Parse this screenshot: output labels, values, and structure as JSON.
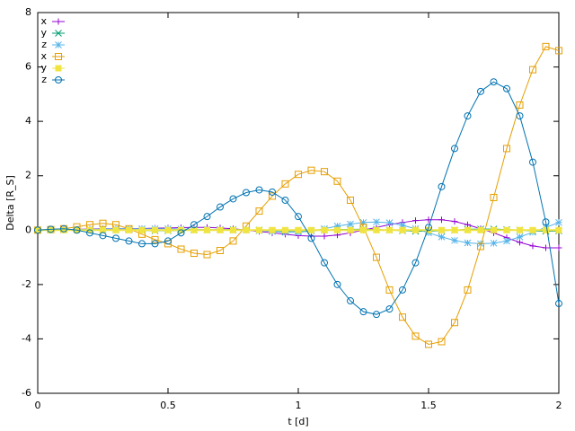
{
  "chart_data": {
    "type": "line",
    "xlabel": "t [d]",
    "ylabel": "Delta [R_S]",
    "x": [
      0,
      0.05,
      0.1,
      0.15,
      0.2,
      0.25,
      0.3,
      0.35,
      0.4,
      0.45,
      0.5,
      0.55,
      0.6,
      0.65,
      0.7,
      0.75,
      0.8,
      0.85,
      0.9,
      0.95,
      1,
      1.05,
      1.1,
      1.15,
      1.2,
      1.25,
      1.3,
      1.35,
      1.4,
      1.45,
      1.5,
      1.55,
      1.6,
      1.65,
      1.7,
      1.75,
      1.8,
      1.85,
      1.9,
      1.95,
      2
    ],
    "series": [
      {
        "name": "x",
        "color": "#9400d3",
        "marker": "plus",
        "values": [
          0,
          0,
          0.02,
          0.03,
          0.04,
          0.05,
          0.05,
          0.05,
          0.06,
          0.07,
          0.08,
          0.09,
          0.1,
          0.1,
          0.08,
          0.05,
          0,
          -0.05,
          -0.1,
          -0.15,
          -0.2,
          -0.22,
          -0.22,
          -0.18,
          -0.1,
          0,
          0.1,
          0.2,
          0.28,
          0.35,
          0.38,
          0.38,
          0.32,
          0.2,
          0.05,
          -0.1,
          -0.28,
          -0.45,
          -0.58,
          -0.65,
          -0.65
        ]
      },
      {
        "name": "y",
        "color": "#009e73",
        "marker": "cross",
        "values": [
          0,
          0,
          0.01,
          0.02,
          0.02,
          0.02,
          0.01,
          0,
          -0.01,
          -0.02,
          -0.02,
          -0.01,
          0,
          0.01,
          0.02,
          0.02,
          0.01,
          0,
          -0.02,
          -0.03,
          -0.03,
          -0.02,
          0,
          0.02,
          0.03,
          0.03,
          0.02,
          0,
          -0.02,
          -0.04,
          -0.04,
          -0.02,
          0,
          0.03,
          0.04,
          0.04,
          0.02,
          0,
          -0.03,
          -0.04,
          -0.03
        ]
      },
      {
        "name": "z",
        "color": "#56b4e9",
        "marker": "star",
        "values": [
          0,
          0,
          0.01,
          0.02,
          0.03,
          0.04,
          0.05,
          0.05,
          0.05,
          0.05,
          0.05,
          0.04,
          0.03,
          0.02,
          0.01,
          0,
          0,
          -0.02,
          -0.05,
          -0.08,
          -0.08,
          -0.03,
          0.05,
          0.15,
          0.22,
          0.28,
          0.3,
          0.27,
          0.18,
          0.05,
          -0.1,
          -0.25,
          -0.38,
          -0.47,
          -0.5,
          -0.48,
          -0.4,
          -0.25,
          -0.08,
          0.1,
          0.28
        ]
      },
      {
        "name": "x",
        "color": "#e69f00",
        "marker": "square",
        "values": [
          0,
          0.02,
          0.05,
          0.12,
          0.2,
          0.25,
          0.2,
          0.05,
          -0.15,
          -0.35,
          -0.5,
          -0.7,
          -0.85,
          -0.9,
          -0.75,
          -0.4,
          0.15,
          0.7,
          1.25,
          1.7,
          2.05,
          2.2,
          2.15,
          1.8,
          1.1,
          0.1,
          -1,
          -2.2,
          -3.2,
          -3.9,
          -4.2,
          -4.1,
          -3.4,
          -2.2,
          -0.6,
          1.2,
          3,
          4.6,
          5.9,
          6.75,
          6.6
        ]
      },
      {
        "name": "y",
        "color": "#f0e442",
        "marker": "filled-square",
        "values": [
          0,
          0,
          0,
          0,
          0,
          0,
          0,
          0,
          0,
          0,
          0,
          0,
          0,
          0,
          0,
          0,
          0,
          0,
          0,
          0,
          0,
          0,
          0,
          0,
          0,
          0,
          0,
          0,
          0,
          0,
          0,
          0,
          0,
          0,
          0,
          0,
          0,
          0,
          0,
          0,
          0
        ]
      },
      {
        "name": "z",
        "color": "#0072b2",
        "marker": "circle",
        "values": [
          0,
          0.03,
          0.05,
          0,
          -0.1,
          -0.2,
          -0.3,
          -0.4,
          -0.5,
          -0.5,
          -0.4,
          -0.1,
          0.2,
          0.5,
          0.85,
          1.15,
          1.38,
          1.48,
          1.4,
          1.1,
          0.5,
          -0.3,
          -1.2,
          -2,
          -2.6,
          -3,
          -3.1,
          -2.9,
          -2.2,
          -1.2,
          0.1,
          1.6,
          3,
          4.2,
          5.1,
          5.45,
          5.2,
          4.2,
          2.5,
          0.3,
          -2.7
        ]
      }
    ],
    "xlim": [
      0,
      2
    ],
    "xticks": [
      0,
      0.5,
      1,
      1.5,
      2
    ],
    "ylim": [
      -6,
      8
    ],
    "yticks": [
      -6,
      -4,
      -2,
      0,
      2,
      4,
      6,
      8
    ],
    "legend": "top-left"
  }
}
